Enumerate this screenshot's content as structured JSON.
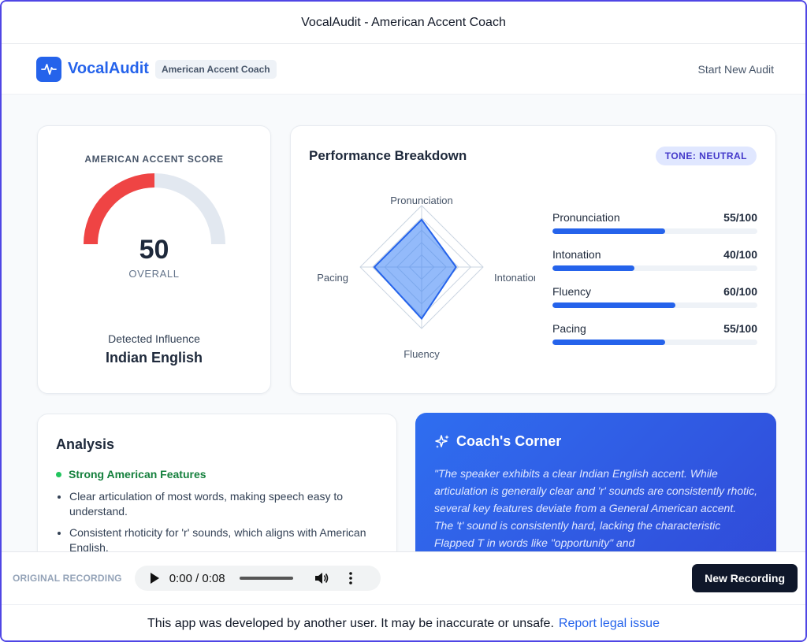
{
  "window": {
    "title": "VocalAudit - American Accent Coach"
  },
  "header": {
    "brand": "VocalAudit",
    "badge": "American Accent Coach",
    "start_new": "Start New Audit",
    "logo_icon": "waveform-icon"
  },
  "score": {
    "label": "AMERICAN ACCENT SCORE",
    "value": "50",
    "value_fraction": 0.5,
    "sub": "OVERALL",
    "influence_label": "Detected Influence",
    "influence": "Indian English",
    "gauge_color": "#ef4444",
    "gauge_track_color": "#e2e8f0"
  },
  "performance": {
    "title": "Performance Breakdown",
    "tone": "TONE: NEUTRAL",
    "axes": [
      "Pronunciation",
      "Intonation",
      "Fluency",
      "Pacing"
    ],
    "items": [
      {
        "label": "Pronunciation",
        "score": "55/100",
        "value": 55
      },
      {
        "label": "Intonation",
        "score": "40/100",
        "value": 40
      },
      {
        "label": "Fluency",
        "score": "60/100",
        "value": 60
      },
      {
        "label": "Pacing",
        "score": "55/100",
        "value": 55
      }
    ],
    "accent_color": "#2563eb"
  },
  "analysis": {
    "title": "Analysis",
    "strong_heading": "Strong American Features",
    "strong_items": [
      "Clear articulation of most words, making speech easy to understand.",
      "Consistent rhoticity for 'r' sounds, which aligns with American English."
    ]
  },
  "coach": {
    "title": "Coach's Corner",
    "icon": "sparkles-icon",
    "text": "\"The speaker exhibits a clear Indian English accent. While articulation is generally clear and 'r' sounds are consistently rhotic, several key features deviate from a General American accent. The 't' sound is consistently hard, lacking the characteristic Flapped T in words like \"opportunity\" and"
  },
  "player": {
    "label": "ORIGINAL RECORDING",
    "time": "0:00 / 0:08",
    "new_recording": "New Recording"
  },
  "footer": {
    "text": "This app was developed by another user. It may be inaccurate or unsafe.",
    "link": "Report legal issue"
  }
}
